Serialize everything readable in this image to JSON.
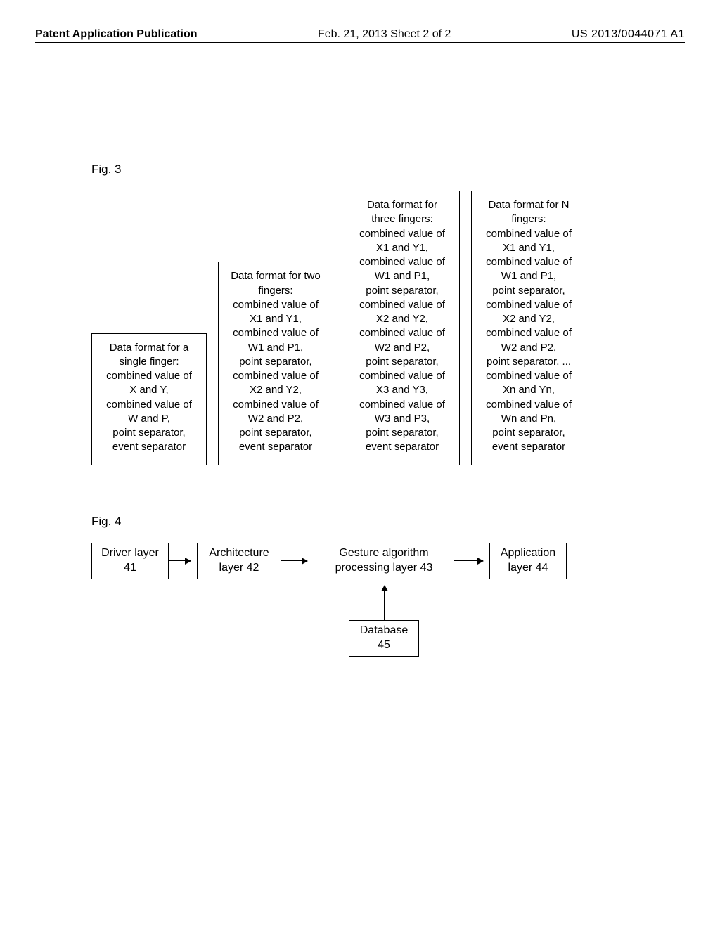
{
  "header": {
    "left": "Patent Application Publication",
    "center": "Feb. 21, 2013  Sheet 2 of 2",
    "right": "US 2013/0044071 A1"
  },
  "fig3": {
    "label": "Fig. 3",
    "boxes": [
      "Data format for a\nsingle finger:\ncombined value of\nX and Y,\ncombined value of\nW and P,\npoint separator,\nevent separator",
      "Data format for two\nfingers:\ncombined value of\nX1 and Y1,\ncombined value of\nW1 and P1,\npoint separator,\ncombined value of\nX2 and Y2,\ncombined value of\nW2 and P2,\npoint separator,\nevent separator",
      "Data format for\nthree fingers:\ncombined value of\nX1 and Y1,\ncombined value of\nW1 and P1,\npoint separator,\ncombined value of\nX2 and Y2,\ncombined value of\nW2 and P2,\npoint separator,\ncombined value of\nX3 and Y3,\ncombined value of\nW3 and P3,\npoint separator,\nevent separator",
      "Data format for N\nfingers:\ncombined value of\nX1 and Y1,\ncombined value of\nW1 and P1,\npoint separator,\ncombined value of\nX2 and Y2,\ncombined value of\nW2 and P2,\npoint separator, ...\ncombined value of\nXn and Yn,\ncombined value of\nWn and Pn,\npoint separator,\nevent separator"
    ]
  },
  "fig4": {
    "label": "Fig. 4",
    "nodes": {
      "driver": "Driver layer\n41",
      "arch": "Architecture\nlayer 42",
      "gesture": "Gesture algorithm\nprocessing layer 43",
      "app": "Application\nlayer 44",
      "db": "Database\n45"
    }
  },
  "style": {
    "border_color": "#000000",
    "background": "#ffffff",
    "font_main": 15,
    "font_header": 16
  }
}
